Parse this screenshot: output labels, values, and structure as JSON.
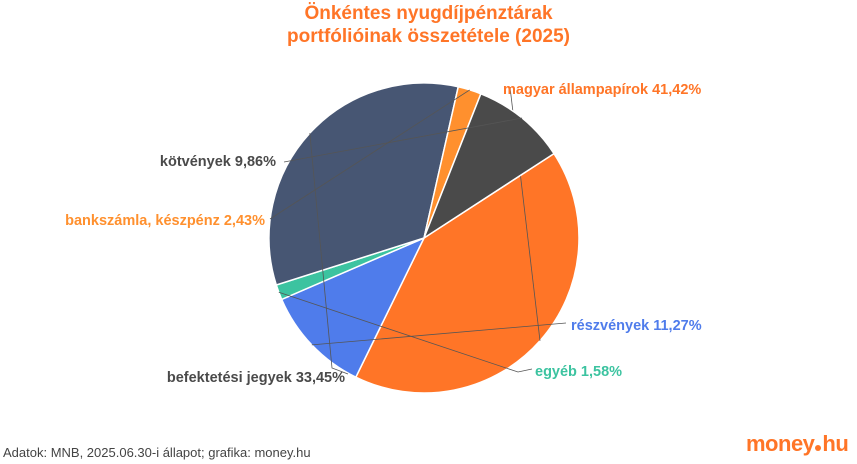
{
  "title_line1": "Önkéntes nyugdíjpénztárak",
  "title_line2": "portfólióinak összetétele (2025)",
  "footer": "Adatok: MNB, 2025.06.30-i állapot; grafika: money.hu",
  "logo": {
    "word": "money",
    "tld": "hu"
  },
  "colors": {
    "title": "#FF7527",
    "text_dark": "#4A4A4A",
    "footer": "#444444",
    "logo": "#FF7527"
  },
  "chart_data": {
    "type": "pie",
    "title": "Önkéntes nyugdíjpénztárak portfólióinak összetétele (2025)",
    "slices": [
      {
        "name": "magyar állampapírok",
        "value": 41.42,
        "label": "magyar állampapírok 41,42%",
        "color": "#FF7527",
        "label_color": "#FF7527"
      },
      {
        "name": "részvények",
        "value": 11.27,
        "label": "részvények 11,27%",
        "color": "#4F7CEB",
        "label_color": "#4F7CEB"
      },
      {
        "name": "egyéb",
        "value": 1.58,
        "label": "egyéb 1,58%",
        "color": "#3CC3A0",
        "label_color": "#3CC3A0"
      },
      {
        "name": "befektetési jegyek",
        "value": 33.45,
        "label": "befektetési jegyek 33,45%",
        "color": "#475673",
        "label_color": "#4A4A4A"
      },
      {
        "name": "bankszámla, készpénz",
        "value": 2.43,
        "label": "bankszámla, készpénz 2,43%",
        "color": "#FF902E",
        "label_color": "#FF902E"
      },
      {
        "name": "kötvények",
        "value": 9.86,
        "label": "kötvények 9,86%",
        "color": "#4A4A4A",
        "label_color": "#4A4A4A"
      }
    ]
  }
}
